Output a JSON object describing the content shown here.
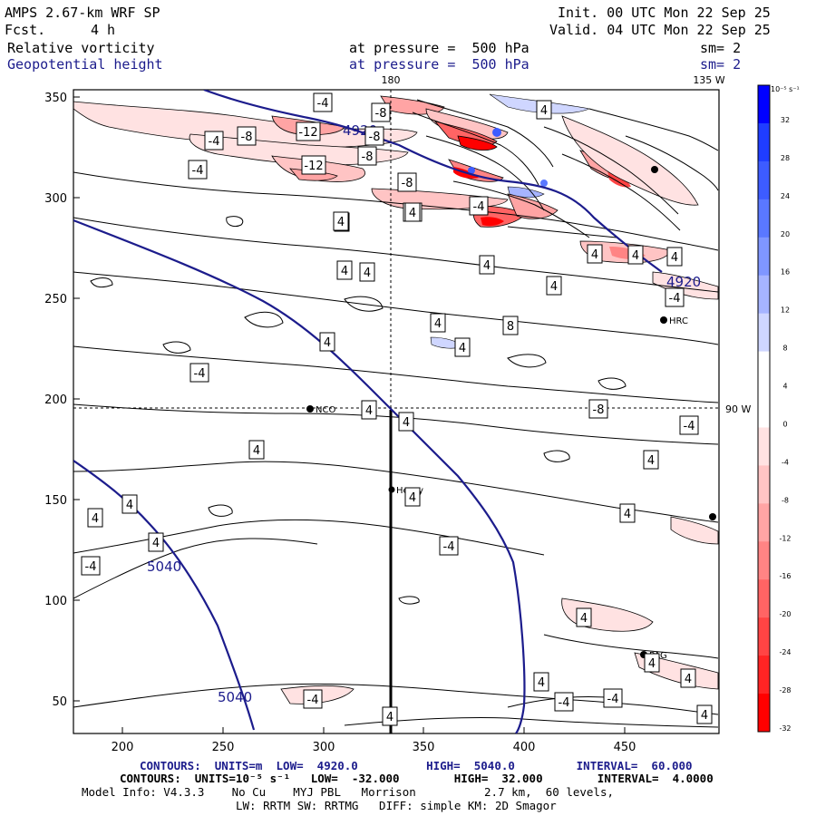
{
  "header": {
    "model_title": "AMPS 2.67-km WRF SP",
    "fcst_label": "Fcst.",
    "fcst_value": "4 h",
    "init": "Init. 00 UTC Mon 22 Sep 25",
    "valid": "Valid. 04 UTC Mon 22 Sep 25",
    "field1_name": "Relative vorticity",
    "field1_level": "at pressure =  500 hPa",
    "field1_sm": "sm= 2",
    "field2_name": "Geopotential height",
    "field2_level": "at pressure =  500 hPa",
    "field2_sm": "sm= 2"
  },
  "map": {
    "x_ticks": [
      "200",
      "250",
      "300",
      "350",
      "400",
      "450"
    ],
    "y_ticks": [
      "350",
      "300",
      "250",
      "200",
      "150",
      "100",
      "50"
    ],
    "lon_labels": {
      "top_180": "180",
      "top_135w": "135 W",
      "right_90w": "90 W"
    },
    "stations": [
      "NCO",
      "Henry",
      "HRC",
      "PAG"
    ],
    "height_contour_labels": [
      "4920",
      "4920",
      "5040",
      "5040"
    ],
    "vorticity_labels": [
      "-4",
      "-8",
      "-8",
      "-12",
      "-8",
      "-4",
      "-12",
      "-8",
      "-4",
      "-8",
      "-4",
      "4",
      "4",
      "4",
      "4",
      "4",
      "4",
      "8",
      "4",
      "4",
      "-4",
      "4",
      "4",
      "4",
      "4",
      "4",
      "4",
      "4",
      "4",
      "4",
      "-4",
      "-4",
      "-8",
      "-4",
      "-4",
      "4",
      "4",
      "4",
      "-4",
      "4",
      "-4",
      "-4",
      "4",
      "4",
      "4",
      "4",
      "4",
      "4",
      "4",
      "-4",
      "4"
    ]
  },
  "colorbar": {
    "unit": "10⁻⁵ s⁻¹",
    "labels": [
      "32",
      "28",
      "24",
      "20",
      "16",
      "12",
      "8",
      "4",
      "0",
      "-4",
      "-8",
      "-12",
      "-16",
      "-20",
      "-24",
      "-28",
      "-32"
    ],
    "colors": [
      "#0000ff",
      "#1f3dff",
      "#3d5cff",
      "#5a78ff",
      "#7f96ff",
      "#a6b4ff",
      "#cfd6ff",
      "#ffffff",
      "#ffffff",
      "#ffe2e2",
      "#ffc4c4",
      "#ffa4a4",
      "#ff8484",
      "#ff6464",
      "#ff4444",
      "#ff2424",
      "#ff0000"
    ]
  },
  "footer": {
    "contours_height": "CONTOURS:  UNITS=m  LOW=  4920.0          HIGH=  5040.0         INTERVAL=  60.000",
    "contours_vort": "CONTOURS:  UNITS=10⁻⁵ s⁻¹   LOW=  -32.000        HIGH=  32.000        INTERVAL=  4.0000",
    "model_info_1": "Model Info: V4.3.3    No Cu    MYJ PBL   Morrison          2.7 km,  60 levels,",
    "model_info_2": "LW: RRTM SW: RRTMG   DIFF: simple KM: 2D Smagor"
  }
}
